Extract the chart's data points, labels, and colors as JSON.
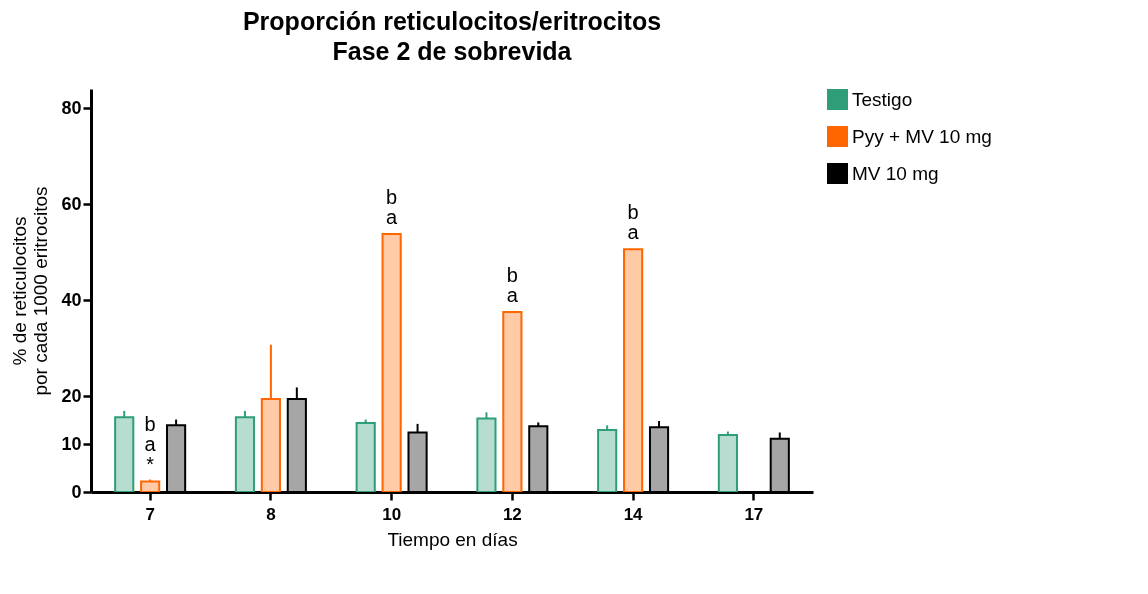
{
  "chart_data": {
    "type": "bar",
    "title": "Proporción reticulocitos/eritrocitos\nFase 2 de sobrevida",
    "xlabel": "Tiempo en días",
    "ylabel": "% de reticulocitos\npor cada 1000 eritrocitos",
    "categories": [
      "7",
      "8",
      "10",
      "12",
      "14",
      "17"
    ],
    "series": [
      {
        "name": "Testigo",
        "color": "#2e9e78",
        "values": [
          15.6,
          15.6,
          14.4,
          15.3,
          12.9,
          11.9
        ],
        "errors": [
          [
            15.6,
            16.9
          ],
          [
            15.6,
            16.9
          ],
          [
            14.4,
            15.1
          ],
          [
            15.3,
            16.6
          ],
          [
            12.9,
            13.9
          ],
          [
            11.9,
            12.6
          ]
        ]
      },
      {
        "name": "Pyy + MV 10 mg",
        "color": "#ff6600",
        "values": [
          2.2,
          19.4,
          53.8,
          37.5,
          50.6,
          null
        ],
        "errors": [
          [
            2.2,
            2.6
          ],
          [
            19.4,
            30.7
          ],
          null,
          null,
          null,
          null
        ]
      },
      {
        "name": "MV 10 mg",
        "color": "#000000",
        "values": [
          13.9,
          19.4,
          12.4,
          13.7,
          13.5,
          11.1
        ],
        "errors": [
          [
            13.9,
            15.1
          ],
          [
            19.4,
            21.8
          ],
          [
            12.4,
            14.2
          ],
          [
            13.7,
            14.5
          ],
          [
            13.5,
            14.8
          ],
          [
            11.1,
            12.4
          ]
        ]
      }
    ],
    "ylim": [
      0,
      84
    ],
    "yticks": [
      0,
      10,
      20,
      40,
      60,
      80
    ],
    "legend": "right",
    "annotations": [
      {
        "text": "*",
        "x": "7",
        "y": 2.2
      },
      {
        "text": "a",
        "x": "7",
        "y": 2.2
      },
      {
        "text": "b",
        "x": "7",
        "y": 2.2
      },
      {
        "text": "a",
        "x": "10",
        "y": 53.8
      },
      {
        "text": "b",
        "x": "10",
        "y": 53.8
      },
      {
        "text": "a",
        "x": "12",
        "y": 37.5
      },
      {
        "text": "b",
        "x": "12",
        "y": 37.5
      },
      {
        "text": "a",
        "x": "14",
        "y": 50.6
      },
      {
        "text": "b",
        "x": "14",
        "y": 50.6
      }
    ]
  }
}
